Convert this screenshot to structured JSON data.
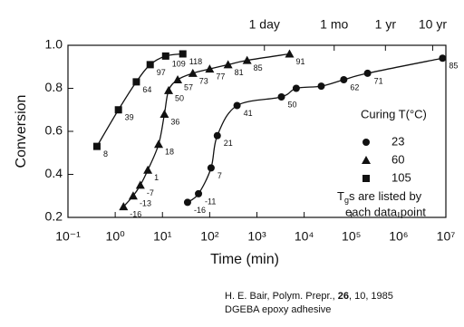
{
  "chart_data": {
    "type": "scatter",
    "y_label": "Conversion",
    "x_label": "Time (min)",
    "log_x": true,
    "xlim": [
      0.1,
      10000000
    ],
    "ylim": [
      0.2,
      1.0
    ],
    "xticks": [
      {
        "value": 0.1,
        "label": "10⁻¹"
      },
      {
        "value": 1,
        "label": "10⁰"
      },
      {
        "value": 10,
        "label": "10¹"
      },
      {
        "value": 100,
        "label": "10²"
      },
      {
        "value": 1000,
        "label": "10³"
      },
      {
        "value": 10000,
        "label": "10⁴"
      },
      {
        "value": 100000,
        "label": "10⁵"
      },
      {
        "value": 1000000,
        "label": "10⁶"
      },
      {
        "value": 10000000,
        "label": "10⁷"
      }
    ],
    "yticks": [
      {
        "value": 0.2,
        "label": "0.2"
      },
      {
        "value": 0.4,
        "label": "0.4"
      },
      {
        "value": 0.6,
        "label": "0.6"
      },
      {
        "value": 0.8,
        "label": "0.8"
      },
      {
        "value": 1.0,
        "label": "1.0"
      }
    ],
    "x2ticks": [
      {
        "value": 1440,
        "label": "1 day"
      },
      {
        "value": 43200,
        "label": "1 mo"
      },
      {
        "value": 525600,
        "label": "1 yr"
      },
      {
        "value": 5256000,
        "label": "10 yr"
      }
    ],
    "legend_title": "Curing T(°C)",
    "legend_note": {
      "t": "T",
      "sub": "g",
      "rest": "s are listed by",
      "line2": "each data point"
    },
    "series": [
      {
        "name": "23",
        "marker": "circle",
        "color": "#111111",
        "x": [
          34,
          58,
          107,
          145,
          380,
          3300,
          6800,
          23000,
          69000,
          220000,
          8500000
        ],
        "values": [
          0.27,
          0.31,
          0.43,
          0.58,
          0.72,
          0.76,
          0.8,
          0.81,
          0.84,
          0.87,
          0.94
        ],
        "tg_labels": [
          -16,
          -11,
          7,
          21,
          41,
          50,
          null,
          null,
          62,
          71,
          85
        ]
      },
      {
        "name": "60",
        "marker": "triangle",
        "color": "#111111",
        "x": [
          1.5,
          2.4,
          3.4,
          4.9,
          8.3,
          11,
          13.5,
          21,
          44,
          100,
          245,
          620,
          4900
        ],
        "values": [
          0.25,
          0.3,
          0.35,
          0.42,
          0.54,
          0.68,
          0.79,
          0.84,
          0.87,
          0.89,
          0.91,
          0.93,
          0.96
        ],
        "tg_labels": [
          -16,
          -13,
          -7,
          1,
          18,
          36,
          50,
          57,
          73,
          77,
          81,
          85,
          91
        ]
      },
      {
        "name": "105",
        "marker": "square",
        "color": "#111111",
        "x": [
          0.41,
          1.17,
          2.8,
          5.5,
          11.7,
          27
        ],
        "values": [
          0.53,
          0.7,
          0.83,
          0.91,
          0.95,
          0.96
        ],
        "tg_labels": [
          8,
          39,
          64,
          97,
          109,
          118
        ]
      }
    ]
  },
  "citation": {
    "pre": "H. E. Bair, Polym. Prepr., ",
    "bold": "26",
    "post": ", 10, 1985",
    "line2": "DGEBA epoxy adhesive"
  }
}
